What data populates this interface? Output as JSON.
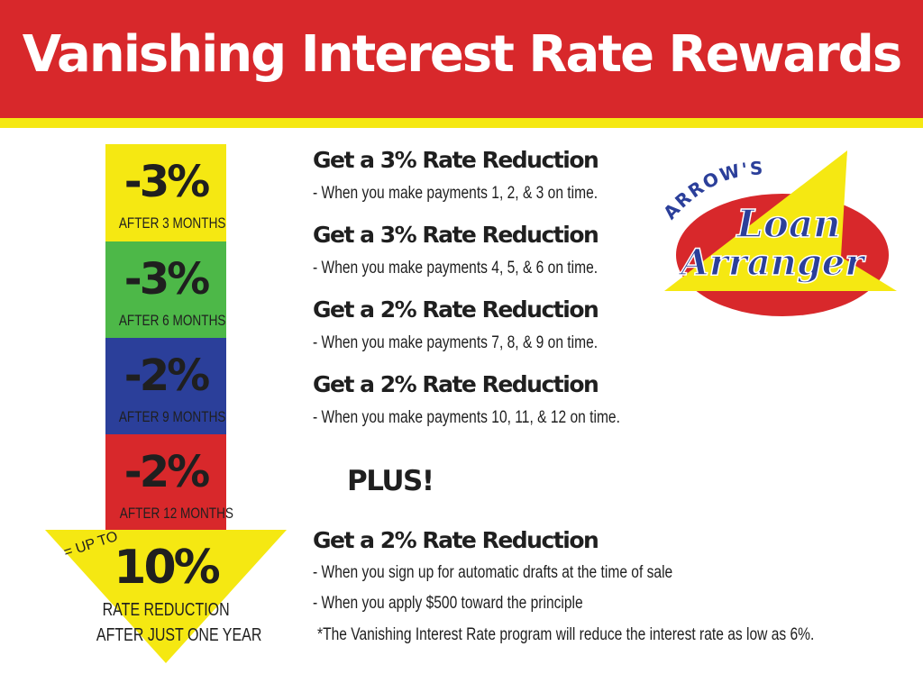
{
  "title": "Vanishing Interest Rate Rewards",
  "steps": [
    {
      "value": "-3%",
      "label": "AFTER 3 MONTHS",
      "color": "#f5e812"
    },
    {
      "value": "-3%",
      "label": "AFTER 6 MONTHS",
      "color": "#4db848"
    },
    {
      "value": "-2%",
      "label": "AFTER 9 MONTHS",
      "color": "#2b3f9a"
    },
    {
      "value": "-2%",
      "label": "AFTER 12 MONTHS",
      "color": "#d8282b"
    }
  ],
  "total": {
    "prefix": "= UP TO",
    "value": "10%",
    "line1": "RATE REDUCTION",
    "line2": "AFTER JUST ONE YEAR"
  },
  "rewards": [
    {
      "heading": "Get a 3% Rate Reduction",
      "detail": "- When you make payments 1, 2, & 3 on time."
    },
    {
      "heading": "Get a 3% Rate Reduction",
      "detail": "- When you make payments 4, 5, & 6 on time."
    },
    {
      "heading": "Get a 2% Rate Reduction",
      "detail": "- When you make payments 7, 8, & 9 on time."
    },
    {
      "heading": "Get a 2% Rate Reduction",
      "detail": "- When you make payments 10, 11, & 12 on time."
    }
  ],
  "plus": "PLUS!",
  "bonus": {
    "heading": "Get a 2% Rate Reduction",
    "line1": "- When you sign up for automatic drafts at the time of sale",
    "line2": "- When you apply $500 toward the principle",
    "footnote": "*The Vanishing Interest Rate program will reduce the interest rate as low as 6%."
  },
  "logo": {
    "top": "ARROW'S",
    "line1": "Loan",
    "line2": "Arranger"
  }
}
